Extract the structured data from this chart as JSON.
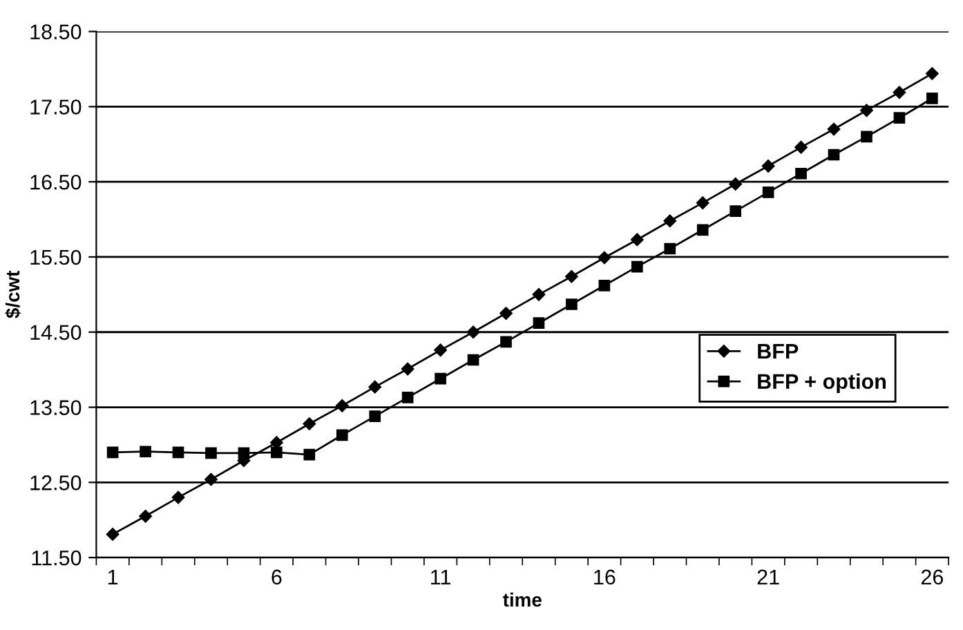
{
  "chart_data": {
    "type": "line",
    "xlabel": "time",
    "ylabel": "$/cwt",
    "categories": [
      "1",
      null,
      null,
      null,
      null,
      "6",
      null,
      null,
      null,
      null,
      "11",
      null,
      null,
      null,
      null,
      "16",
      null,
      null,
      null,
      null,
      "21",
      null,
      null,
      null,
      null,
      "26"
    ],
    "series": [
      {
        "name": "BFP",
        "color": "#000000",
        "marker": "diamond",
        "values": [
          11.81,
          12.05,
          12.3,
          12.54,
          12.79,
          13.03,
          13.28,
          13.52,
          13.77,
          14.01,
          14.26,
          14.5,
          14.75,
          15.0,
          15.24,
          15.49,
          15.73,
          15.98,
          16.22,
          16.47,
          16.71,
          16.96,
          17.2,
          17.45,
          17.69,
          17.94
        ]
      },
      {
        "name": "BFP + option",
        "color": "#000000",
        "marker": "square",
        "values": [
          12.9,
          12.91,
          12.9,
          12.89,
          12.89,
          12.9,
          12.87,
          13.13,
          13.38,
          13.63,
          13.88,
          14.13,
          14.37,
          14.62,
          14.87,
          15.12,
          15.37,
          15.61,
          15.86,
          16.11,
          16.36,
          16.61,
          16.86,
          17.1,
          17.35,
          17.61
        ]
      }
    ],
    "ylim": [
      11.5,
      18.5
    ],
    "yticks": [
      {
        "value": 11.5,
        "label": "11.50"
      },
      {
        "value": 12.5,
        "label": "12.50"
      },
      {
        "value": 13.5,
        "label": "13.50"
      },
      {
        "value": 14.5,
        "label": "14.50"
      },
      {
        "value": 15.5,
        "label": "15.50"
      },
      {
        "value": 16.5,
        "label": "16.50"
      },
      {
        "value": 17.5,
        "label": "17.50"
      },
      {
        "value": 18.5,
        "label": "18.50"
      }
    ],
    "grid": "y",
    "legend": "right",
    "line_style": "solid"
  }
}
